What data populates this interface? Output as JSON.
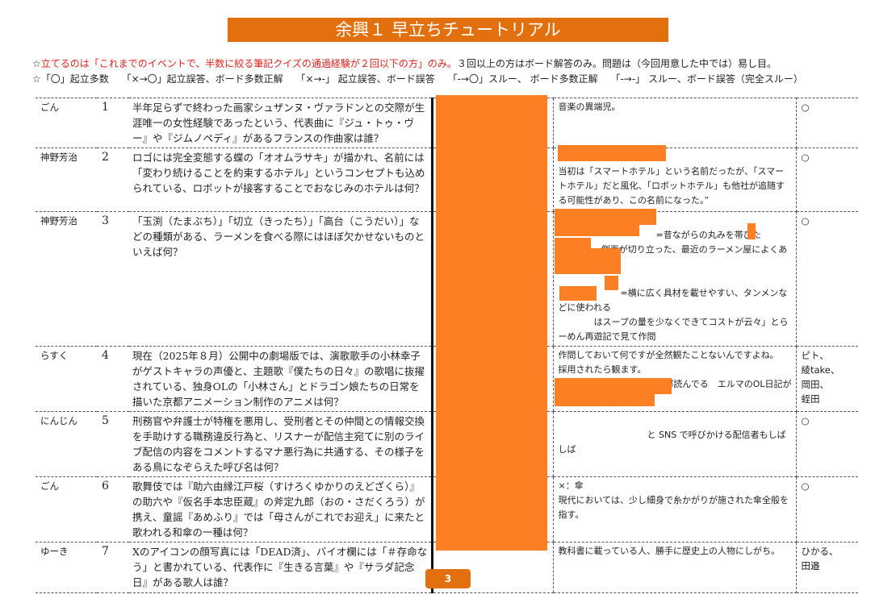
{
  "title": "余興１ 早立ちチュートリアル",
  "notes": {
    "line1_prefix": "☆",
    "line1_red": "立てるのは「これまでのイベントで、半数に絞る筆記クイズの通過経験が２回以下の方」のみ。",
    "line1_rest": "３回以上の方はボード解答のみ。問題は（今回用意した中では）易し目。",
    "line2": "☆「〇」起立多数　 「×→〇」起立誤答、ボード多数正解　 「×→-」 起立誤答、ボード誤答　 「-→〇」スルー、 ボード多数正解　 「-→-」 スルー、ボード誤答（完全スルー）"
  },
  "rows": [
    {
      "author": "ごん",
      "no": "1",
      "question": "半年足らずで終わった画家シュザンヌ・ヴァラドンとの交際が生涯唯一の女性経験であったという、代表曲に『ジュ・トゥ・ヴー』や『ジムノペディ』があるフランスの作曲家は誰？",
      "comment": "音楽の異端児。",
      "judges": "○"
    },
    {
      "author": "神野芳治",
      "no": "2",
      "question": "ロゴには完全変態する蝶の「オオムラサキ」が描かれ、名前には「変わり続けることを約束するホテル」というコンセプトも込められている、ロボットが接客することでおなじみのホテルは何？",
      "comment": "\n当初は「スマートホテル」という名前だったが、「スマートホテル」だと風化、「ロボットホテル」も他社が追随する可能性があり、この名前になった。”",
      "judges": "○"
    },
    {
      "author": "神野芳治",
      "no": "3",
      "question": "「玉渕（たまぶち）」「切立（きったち）」「高台（こうだい）」などの種類がある、ラーメンを食べる際にはほぼ欠かせないものといえば何？",
      "comment": "\n　　　　　　　　　　　=昔ながらの丸みを帯びた\n　　　　=側面が切り立った、最近のラーメン屋によくある\n\n　　　　　　　=横に広く具材を載せやすい、タンメンなどに使われる\n　　　　はスープの量を少なくできてコストが云々」とらーめん再遊記で見て作問",
      "judges": "○"
    },
    {
      "author": "らすく",
      "no": "4",
      "question": "現在（2025年８月）公開中の劇場版では、演歌歌手の小林幸子がゲストキャラの声優と、主題歌『僕たちの日々』の歌唱に抜擢されている、独身OLの「小林さん」とドラゴン娘たちの日常を描いた京都アニメーション制作のアニメは何？",
      "comment": "作問しておいて何ですが全然観たことないんですよね。\n採用されたら観ます。\nワシ、スピンオフ含めて全部読んでる　エルマのOL日記が一番好き【神野】",
      "judges": "ピト、\n綾take、\n岡田、\n蛭田"
    },
    {
      "author": "にんじん",
      "no": "5",
      "question": "刑務官や弁護士が特権を悪用し、受刑者とその仲間との情報交換を手助けする職務違反行為と、リスナーが配信主宛てに別のライブ配信の内容をコメントするマナ悪行為に共通する、その様子をある鳥になぞらえた呼び名は何？",
      "comment": "\n　　　　　　　　　　と SNS で呼びかける配信者もしばしば",
      "judges": "○"
    },
    {
      "author": "ごん",
      "no": "6",
      "question": "歌舞伎では『助六由縁江戸桜（すけろくゆかりのえどざくら）』の助六や『仮名手本忠臣蔵』の斧定九郎（おの・さだくろう）が携え、童謡『あめふり』では「母さんがこれでお迎え」に来たと歌われる和傘の一種は何？",
      "comment": "×：傘\n現代においては、少し細身で糸かがりが施された傘全般を指す。",
      "judges": "○"
    },
    {
      "author": "ゆーき",
      "no": "7",
      "question": "Xのアイコンの顔写真には「DEAD済」、バイオ欄には「＃存命なう」と書かれている、代表作に『生きる言葉』や『サラダ記念日』がある歌人は誰？",
      "comment": "教科書に載っている人、勝手に歴史上の人物にしがち。",
      "judges": "ひかる、\n田邉"
    }
  ],
  "page_number": "3",
  "colors": {
    "accent": "#e2700f",
    "redaction": "#fc7f23",
    "note_red": "#e0201b"
  }
}
